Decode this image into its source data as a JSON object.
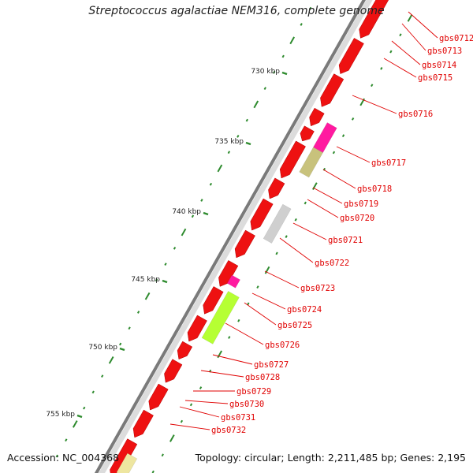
{
  "title": "Streptococcus agalactiae NEM316, complete genome",
  "footer": {
    "accession": "Accession: NC_004368",
    "summary": "Topology: circular; Length: 2,211,485 bp; Genes: 2,195"
  },
  "scale_ticks": [
    "730 kbp",
    "735 kbp",
    "740 kbp",
    "745 kbp",
    "750 kbp",
    "755 kbp"
  ],
  "gene_labels": [
    "gbs0712",
    "gbs0713",
    "gbs0714",
    "gbs0715",
    "gbs0716",
    "gbs0717",
    "gbs0718",
    "gbs0719",
    "gbs0720",
    "gbs0721",
    "gbs0722",
    "gbs0723",
    "gbs0724",
    "gbs0725",
    "gbs0726",
    "gbs0727",
    "gbs0728",
    "gbs0729",
    "gbs0730",
    "gbs0731",
    "gbs0732"
  ],
  "colors": {
    "cds": "#ee1111",
    "label": "#e00000",
    "backbone": "#7a7a7a",
    "tick": "#2e8b2e",
    "magenta": "#ff1aa0",
    "khaki": "#c8c27c",
    "gray_feature": "#cfcfcf",
    "lime": "#b6ff33",
    "khaki_light": "#eee6a0"
  }
}
